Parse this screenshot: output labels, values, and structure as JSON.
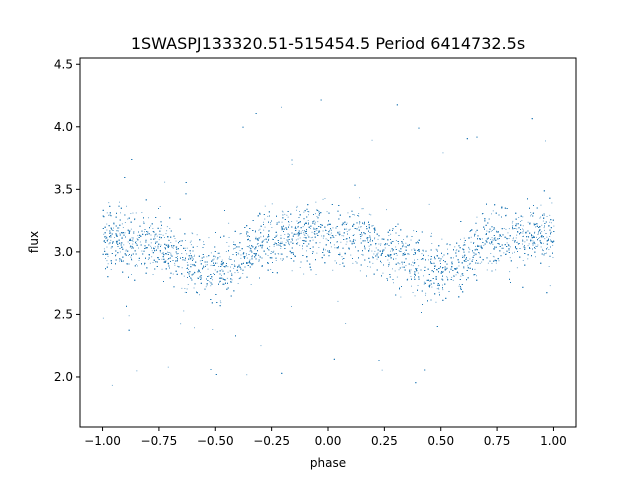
{
  "chart_data": {
    "type": "scatter",
    "title": "1SWASPJ133320.51-515454.5 Period 6414732.5s",
    "xlabel": "phase",
    "ylabel": "flux",
    "xlim": [
      -1.1,
      1.1
    ],
    "ylim": [
      1.6,
      4.55
    ],
    "x_ticks": [
      -1.0,
      -0.75,
      -0.5,
      -0.25,
      0.0,
      0.25,
      0.5,
      0.75,
      1.0
    ],
    "x_tick_labels": [
      "−1.00",
      "−0.75",
      "−0.50",
      "−0.25",
      "0.00",
      "0.25",
      "0.50",
      "0.75",
      "1.00"
    ],
    "y_ticks": [
      2.0,
      2.5,
      3.0,
      3.5,
      4.0,
      4.5
    ],
    "y_tick_labels": [
      "2.0",
      "2.5",
      "3.0",
      "3.5",
      "4.0",
      "4.5"
    ],
    "grid": false,
    "marker_color": "#1f77b4",
    "trend": {
      "x": [
        -1.0,
        -0.9,
        -0.8,
        -0.7,
        -0.6,
        -0.5,
        -0.4,
        -0.3,
        -0.2,
        -0.1,
        0.0,
        0.1,
        0.2,
        0.3,
        0.4,
        0.5,
        0.6,
        0.7,
        0.8,
        0.9,
        1.0
      ],
      "y": [
        3.12,
        3.1,
        3.07,
        3.0,
        2.92,
        2.85,
        2.95,
        3.08,
        3.12,
        3.15,
        3.14,
        3.12,
        3.08,
        3.0,
        2.92,
        2.85,
        2.95,
        3.08,
        3.12,
        3.15,
        3.14
      ]
    },
    "x_range": [
      -1.0,
      1.0
    ],
    "y_range": [
      1.75,
      4.4
    ],
    "point_count": 9000
  }
}
